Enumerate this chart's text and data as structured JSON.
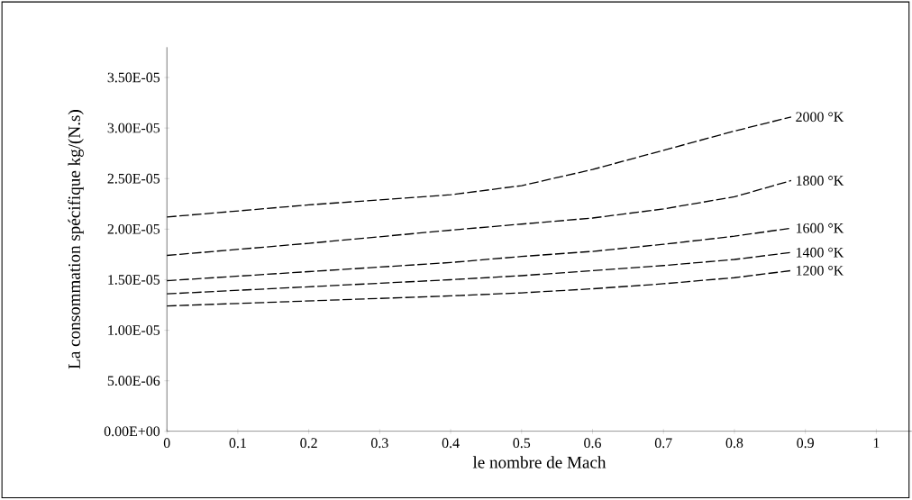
{
  "chart_data": {
    "type": "line",
    "xlabel": "le nombre de Mach",
    "ylabel": "La consommation spécifique kg/(N.s)",
    "xlim": [
      0,
      1.05
    ],
    "ylim": [
      0,
      3.8e-05
    ],
    "xticks": [
      0,
      0.1,
      0.2,
      0.3,
      0.4,
      0.5,
      0.6,
      0.7,
      0.8,
      0.9,
      1
    ],
    "yticks": [
      {
        "value": 0,
        "label": "0.00E+00"
      },
      {
        "value": 5e-06,
        "label": "5.00E-06"
      },
      {
        "value": 1e-05,
        "label": "1.00E-05"
      },
      {
        "value": 1.5e-05,
        "label": "1.50E-05"
      },
      {
        "value": 2e-05,
        "label": "2.00E-05"
      },
      {
        "value": 2.5e-05,
        "label": "2.50E-05"
      },
      {
        "value": 3e-05,
        "label": "3.00E-05"
      },
      {
        "value": 3.5e-05,
        "label": "3.50E-05"
      }
    ],
    "x": [
      0,
      0.2,
      0.4,
      0.5,
      0.6,
      0.7,
      0.8,
      0.88
    ],
    "line_style": "dashed",
    "marker": "none",
    "legend": false,
    "series": [
      {
        "name": "2000 °K",
        "color": "#000000",
        "values": [
          2.12e-05,
          2.24e-05,
          2.34e-05,
          2.43e-05,
          2.59e-05,
          2.78e-05,
          2.97e-05,
          3.11e-05
        ]
      },
      {
        "name": "1800 °K",
        "color": "#000000",
        "values": [
          1.74e-05,
          1.86e-05,
          1.99e-05,
          2.05e-05,
          2.11e-05,
          2.2e-05,
          2.32e-05,
          2.48e-05
        ]
      },
      {
        "name": "1600 °K",
        "color": "#000000",
        "values": [
          1.49e-05,
          1.58e-05,
          1.67e-05,
          1.73e-05,
          1.78e-05,
          1.85e-05,
          1.93e-05,
          2.01e-05
        ]
      },
      {
        "name": "1400 °K",
        "color": "#000000",
        "values": [
          1.36e-05,
          1.43e-05,
          1.5e-05,
          1.54e-05,
          1.59e-05,
          1.64e-05,
          1.7e-05,
          1.77e-05
        ]
      },
      {
        "name": "1200 °K",
        "color": "#000000",
        "values": [
          1.24e-05,
          1.29e-05,
          1.34e-05,
          1.37e-05,
          1.41e-05,
          1.46e-05,
          1.52e-05,
          1.59e-05
        ]
      }
    ]
  }
}
